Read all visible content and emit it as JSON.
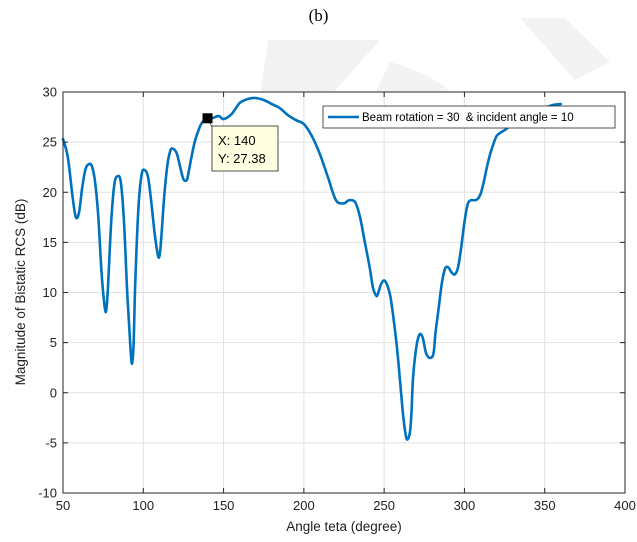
{
  "caption": "(b)",
  "colors": {
    "series": "#0072BD",
    "grid": "#e1e1e1",
    "axis": "#262626",
    "datatip_bg": "#ffffe1",
    "watermark": "#c8c8c8"
  },
  "chart_data": {
    "type": "line",
    "title": "",
    "xlabel": "Angle teta (degree)",
    "ylabel": "Magnitude of Bistatic RCS (dB)",
    "xlim": [
      50,
      400
    ],
    "ylim": [
      -10,
      30
    ],
    "xticks": [
      50,
      100,
      150,
      200,
      250,
      300,
      350,
      400
    ],
    "yticks": [
      -10,
      -5,
      0,
      5,
      10,
      15,
      20,
      25,
      30
    ],
    "grid": true,
    "legend_position": "top-right",
    "series": [
      {
        "name": "Beam rotation = 30  & incident angle = 10",
        "x": [
          50,
          53,
          56,
          58,
          60,
          62,
          64,
          66,
          68,
          70,
          72,
          74,
          76,
          77,
          78,
          80,
          82,
          84,
          86,
          88,
          90,
          92,
          93,
          94,
          95,
          97,
          99,
          101,
          103,
          105,
          107,
          109,
          110,
          111,
          113,
          115,
          117,
          119,
          121,
          123,
          125,
          127,
          128,
          130,
          132,
          134,
          136,
          138,
          140,
          143,
          147,
          150,
          155,
          160,
          165,
          170,
          175,
          180,
          185,
          190,
          195,
          200,
          205,
          210,
          215,
          220,
          225,
          228,
          232,
          235,
          238,
          241,
          243,
          245,
          246,
          248,
          250,
          252,
          254,
          256,
          258,
          260,
          262,
          264,
          266,
          267,
          268,
          270,
          272,
          274,
          276,
          278,
          280,
          281,
          282,
          284,
          286,
          288,
          290,
          292,
          294,
          296,
          298,
          300,
          302,
          304,
          306,
          308,
          310,
          312,
          314,
          316,
          318,
          320,
          322,
          324,
          326,
          328,
          330,
          335,
          340,
          345,
          350,
          355,
          360
        ],
        "y": [
          25.3,
          23.5,
          19.5,
          17.5,
          18.0,
          20.5,
          22.3,
          22.8,
          22.6,
          21.0,
          17.5,
          12.0,
          8.5,
          8.3,
          10.5,
          17.0,
          20.8,
          21.6,
          21.0,
          17.0,
          10.0,
          4.5,
          2.9,
          5.0,
          11.0,
          18.5,
          21.8,
          22.2,
          21.5,
          19.0,
          16.0,
          13.8,
          13.6,
          15.0,
          19.5,
          22.7,
          24.2,
          24.3,
          23.8,
          22.5,
          21.3,
          21.2,
          21.8,
          23.5,
          25.0,
          26.0,
          26.8,
          27.2,
          27.38,
          27.4,
          27.6,
          27.3,
          27.8,
          28.9,
          29.3,
          29.4,
          29.2,
          28.8,
          28.4,
          27.7,
          27.2,
          26.8,
          25.6,
          23.8,
          21.5,
          19.2,
          18.9,
          19.2,
          19.0,
          17.5,
          15.0,
          12.5,
          10.5,
          9.7,
          9.8,
          10.8,
          11.2,
          10.7,
          9.5,
          7.2,
          4.5,
          1.0,
          -2.5,
          -4.6,
          -4.0,
          -2.0,
          1.5,
          4.5,
          5.8,
          5.5,
          4.0,
          3.5,
          3.6,
          4.2,
          6.0,
          8.5,
          11.0,
          12.4,
          12.5,
          12.0,
          11.8,
          12.5,
          14.5,
          17.0,
          18.8,
          19.2,
          19.2,
          19.3,
          19.8,
          21.0,
          22.5,
          23.8,
          24.8,
          25.6,
          25.9,
          26.1,
          26.3,
          26.6,
          26.8,
          27.2,
          27.6,
          28.0,
          28.4,
          28.7,
          28.8
        ]
      }
    ],
    "datatip": {
      "x": 140,
      "y": 27.38,
      "x_label": "X: 140",
      "y_label": "Y: 27.38"
    }
  }
}
